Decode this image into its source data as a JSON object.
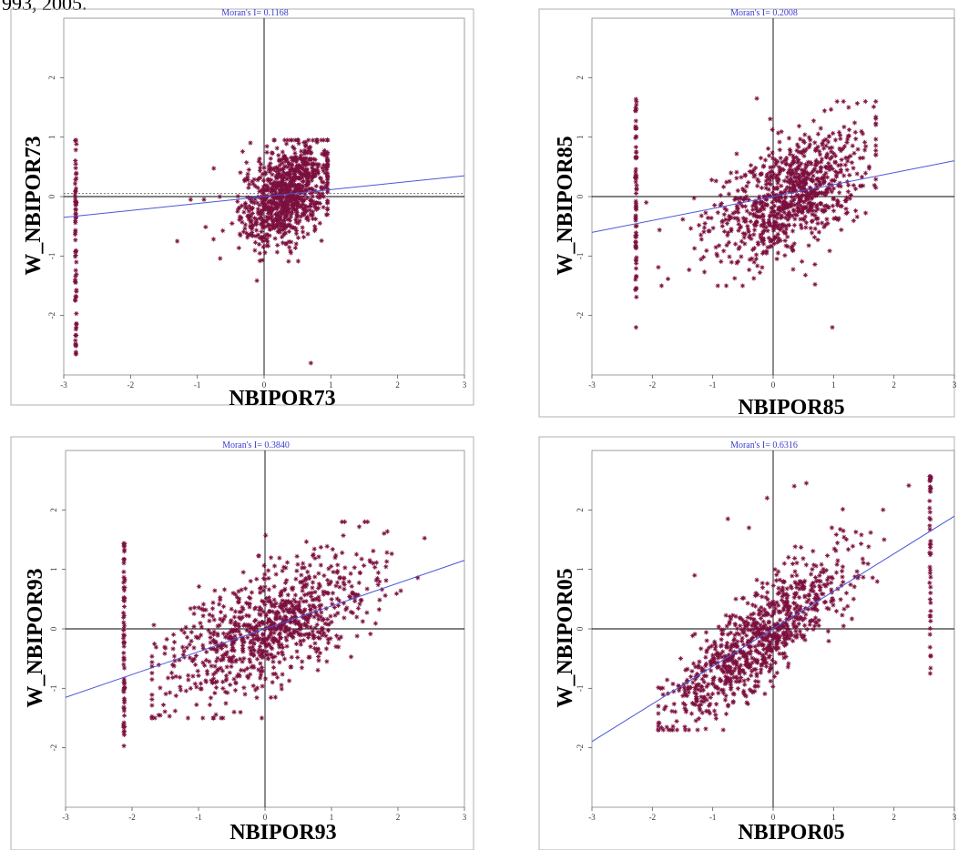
{
  "header_fragment": "993, 2005.",
  "colors": {
    "point": "#7b0f3e",
    "regression_line": "#4a57d6",
    "axis": "#000000",
    "title": "#3a3ad0",
    "frame": "#888888"
  },
  "chart_data": [
    {
      "type": "scatter",
      "title": "Moran's I= 0.1168",
      "xlabel": "NBIPOR73",
      "ylabel": "W_NBIPOR73",
      "xlim": [
        -3,
        3
      ],
      "ylim": [
        -3,
        3
      ],
      "xticks": [
        "-3",
        "-2",
        "-1",
        "0",
        "1",
        "2",
        "3"
      ],
      "yticks": [
        "-2",
        "-1",
        "0",
        "1",
        "2"
      ],
      "slope": 0.1168,
      "reference_line_y": 0.05,
      "columns": [
        {
          "x": -2.82,
          "y_min": -2.8,
          "y_max": 0.95,
          "n": 70
        }
      ],
      "clusters": [
        {
          "cx": 0.35,
          "cy": 0.05,
          "sx": 0.35,
          "sy": 0.45,
          "n": 900,
          "x_range": [
            -1.2,
            0.95
          ],
          "y_range": [
            -1.8,
            0.95
          ],
          "corr": 0.45
        }
      ],
      "outliers": [
        [
          -1.3,
          -0.75
        ],
        [
          0.7,
          -2.8
        ],
        [
          -1.1,
          -0.05
        ],
        [
          -0.9,
          -0.05
        ]
      ]
    },
    {
      "type": "scatter",
      "title": "Moran's I= 0.2008",
      "xlabel": "NBIPOR85",
      "ylabel": "W_NBIPOR85",
      "xlim": [
        -3,
        3
      ],
      "ylim": [
        -3,
        3
      ],
      "xticks": [
        "-3",
        "-2",
        "-1",
        "0",
        "1",
        "2",
        "3"
      ],
      "yticks": [
        "-2",
        "-1",
        "0",
        "1",
        "2"
      ],
      "slope": 0.2008,
      "reference_line_y": 0,
      "columns": [
        {
          "x": -2.27,
          "y_min": -1.75,
          "y_max": 1.65,
          "n": 70
        }
      ],
      "clusters": [
        {
          "cx": 0.25,
          "cy": 0.0,
          "sx": 0.65,
          "sy": 0.55,
          "n": 900,
          "x_range": [
            -1.9,
            1.7
          ],
          "y_range": [
            -1.5,
            1.6
          ],
          "corr": 0.55
        }
      ],
      "outliers": [
        [
          -2.27,
          -2.2
        ],
        [
          0.98,
          -2.2
        ],
        [
          -0.27,
          1.65
        ],
        [
          -2.1,
          -0.1
        ]
      ]
    },
    {
      "type": "scatter",
      "title": "Moran's I= 0.3840",
      "xlabel": "NBIPOR93",
      "ylabel": "W_NBIPOR93",
      "xlim": [
        -3,
        3
      ],
      "ylim": [
        -3,
        3
      ],
      "xticks": [
        "-3",
        "-2",
        "-1",
        "0",
        "1",
        "2",
        "3"
      ],
      "yticks": [
        "-2",
        "-1",
        "0",
        "1",
        "2"
      ],
      "slope": 0.384,
      "reference_line_y": 0,
      "columns": [
        {
          "x": -2.12,
          "y_min": -2.1,
          "y_max": 1.45,
          "n": 70
        }
      ],
      "clusters": [
        {
          "cx": 0.05,
          "cy": 0.0,
          "sx": 0.8,
          "sy": 0.65,
          "n": 900,
          "x_range": [
            -1.7,
            2.4
          ],
          "y_range": [
            -1.5,
            1.8
          ],
          "corr": 0.65
        }
      ],
      "outliers": [
        [
          1.2,
          1.8
        ],
        [
          -1.6,
          -1.45
        ],
        [
          -0.3,
          -1.1
        ]
      ]
    },
    {
      "type": "scatter",
      "title": "Moran's I= 0.6316",
      "xlabel": "NBIPOR05",
      "ylabel": "W_NBIPOR05",
      "xlim": [
        -3,
        3
      ],
      "ylim": [
        -3,
        3
      ],
      "xticks": [
        "-3",
        "-2",
        "-1",
        "0",
        "1",
        "2",
        "3"
      ],
      "yticks": [
        "-2",
        "-1",
        "0",
        "1",
        "2"
      ],
      "slope": 0.6316,
      "reference_line_y": 0,
      "columns": [
        {
          "x": 2.6,
          "y_min": -0.7,
          "y_max": 2.6,
          "n": 45
        }
      ],
      "clusters": [
        {
          "cx": -0.3,
          "cy": -0.25,
          "sx": 0.8,
          "sy": 0.75,
          "n": 900,
          "x_range": [
            -1.9,
            2.7
          ],
          "y_range": [
            -1.7,
            2.6
          ],
          "corr": 0.85
        }
      ],
      "outliers": [
        [
          -0.1,
          2.2
        ],
        [
          0.35,
          2.4
        ],
        [
          0.55,
          2.45
        ],
        [
          -0.75,
          1.85
        ],
        [
          -0.4,
          1.7
        ],
        [
          -1.3,
          0.9
        ],
        [
          2.6,
          -0.75
        ]
      ]
    }
  ]
}
